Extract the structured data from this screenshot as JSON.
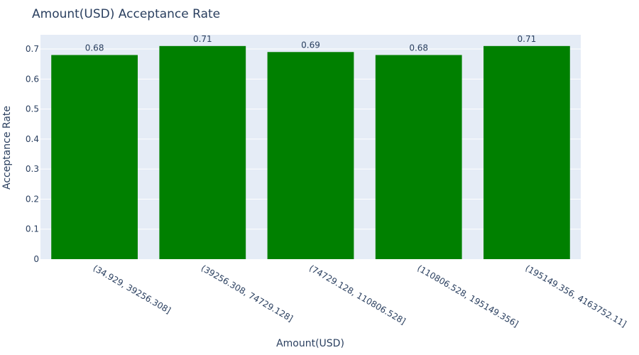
{
  "colors": {
    "bar": "#008000",
    "plot_background": "#e5ecf6",
    "gridline": "#ffffff",
    "text": "#2a3f5f"
  },
  "chart_data": {
    "type": "bar",
    "title": "Amount(USD) Acceptance Rate",
    "xlabel": "Amount(USD)",
    "ylabel": "Acceptance Rate",
    "categories": [
      "(34.929, 39256.308]",
      "(39256.308, 74729.128]",
      "(74729.128, 110806.528]",
      "(110806.528, 195149.356]",
      "(195149.356, 4163752.11]"
    ],
    "values": [
      0.68,
      0.71,
      0.69,
      0.68,
      0.71
    ],
    "data_labels": [
      "0.68",
      "0.71",
      "0.69",
      "0.68",
      "0.71"
    ],
    "ylim": [
      0,
      0.7474
    ],
    "yticks": [
      0,
      0.1,
      0.2,
      0.3,
      0.4,
      0.5,
      0.6,
      0.7
    ],
    "ytick_labels": [
      "0",
      "0.1",
      "0.2",
      "0.3",
      "0.4",
      "0.5",
      "0.6",
      "0.7"
    ],
    "grid": true,
    "legend": "none"
  }
}
